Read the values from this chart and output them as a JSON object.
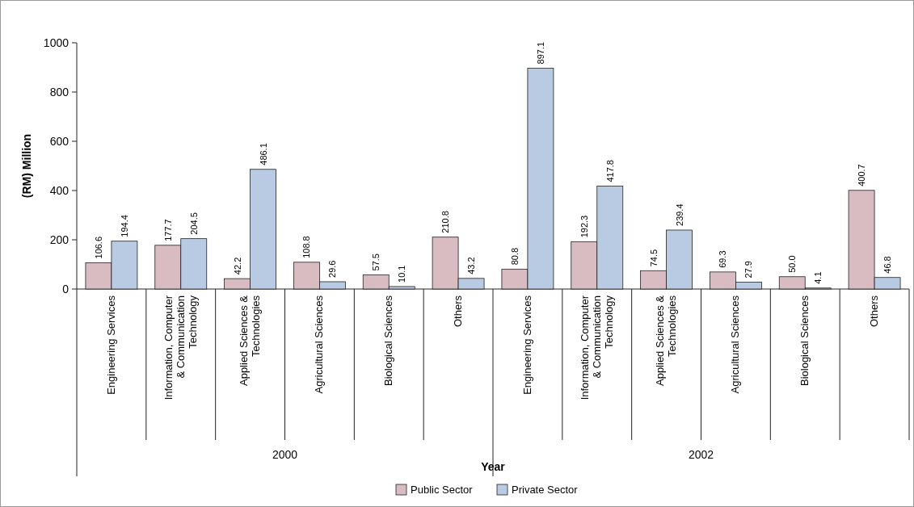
{
  "chart_data": {
    "type": "bar",
    "ylabel": "(RM) Million",
    "categories": [
      "Engineering Services",
      "Information, Computer & Communication Technology",
      "Applied Sciences & Technologies",
      "Agricultural Sciences",
      "Biological Sciences",
      "Others",
      "Engineering Services",
      "Information, Computer & Communication Technology",
      "Applied Sciences & Technologies",
      "Agricultural Sciences",
      "Biological Sciences",
      "Others"
    ],
    "series": [
      {
        "name": "Public Sector",
        "color": "#d8bcc2",
        "values": [
          106.6,
          177.7,
          42.2,
          108.8,
          57.5,
          210.8,
          80.8,
          192.3,
          74.5,
          69.3,
          50.0,
          400.7
        ],
        "value_labels": [
          "106.6",
          "177.7",
          "42.2",
          "108.8",
          "57.5",
          "210.8",
          "80.8",
          "192.3",
          "74.5",
          "69.3",
          "50.0",
          "400.7"
        ]
      },
      {
        "name": "Private Sector",
        "color": "#b9cbe3",
        "values": [
          194.4,
          204.5,
          486.1,
          29.6,
          10.1,
          43.2,
          897.1,
          417.8,
          239.4,
          27.9,
          4.1,
          46.8
        ],
        "value_labels": [
          "194.4",
          "204.5",
          "486.1",
          "29.6",
          "10.1",
          "43.2",
          "897.1",
          "417.8",
          "239.4",
          "27.9",
          "4.1",
          "46.8"
        ]
      }
    ],
    "annotations": [
      "2000",
      "2002",
      "Year"
    ],
    "ylim": [
      0,
      1000
    ],
    "yticks": [
      0,
      200,
      400,
      600,
      800,
      1000
    ],
    "legend": "bottom",
    "grid": false
  }
}
